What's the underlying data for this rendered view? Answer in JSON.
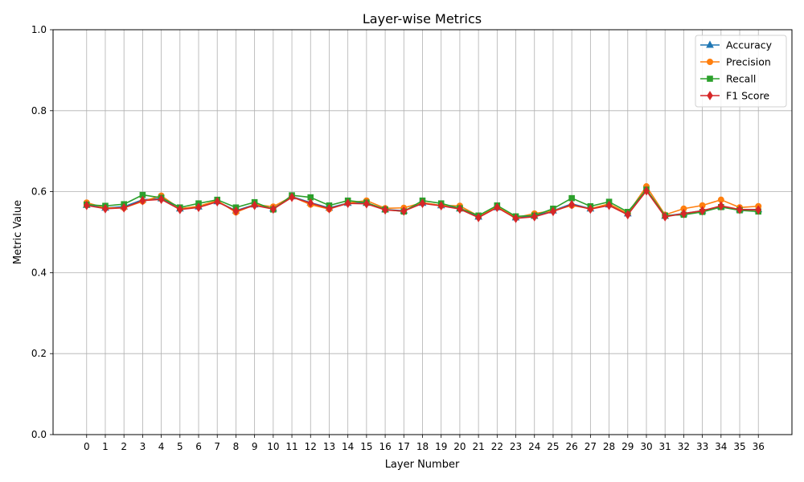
{
  "chart_data": {
    "type": "line",
    "title": "Layer-wise Metrics",
    "xlabel": "Layer Number",
    "ylabel": "Metric Value",
    "x": [
      0,
      1,
      2,
      3,
      4,
      5,
      6,
      7,
      8,
      9,
      10,
      11,
      12,
      13,
      14,
      15,
      16,
      17,
      18,
      19,
      20,
      21,
      22,
      23,
      24,
      25,
      26,
      27,
      28,
      29,
      30,
      31,
      32,
      33,
      34,
      35,
      36
    ],
    "xlim": [
      -1.8,
      37.8
    ],
    "ylim": [
      0.0,
      1.0
    ],
    "yticks": [
      0.0,
      0.2,
      0.4,
      0.6,
      0.8,
      1.0
    ],
    "ytick_labels": [
      "0.0",
      "0.2",
      "0.4",
      "0.6",
      "0.8",
      "1.0"
    ],
    "grid": "on",
    "legend": "top-right",
    "series": [
      {
        "name": "Accuracy",
        "color": "#1f77b4",
        "marker": "triangle",
        "values": [
          0.567,
          0.56,
          0.563,
          0.58,
          0.583,
          0.558,
          0.563,
          0.576,
          0.553,
          0.568,
          0.558,
          0.588,
          0.573,
          0.56,
          0.572,
          0.572,
          0.556,
          0.553,
          0.572,
          0.566,
          0.558,
          0.538,
          0.561,
          0.536,
          0.54,
          0.553,
          0.57,
          0.558,
          0.568,
          0.546,
          0.604,
          0.54,
          0.546,
          0.553,
          0.563,
          0.556,
          0.556
        ]
      },
      {
        "name": "Precision",
        "color": "#ff7f0e",
        "marker": "circle",
        "values": [
          0.573,
          0.56,
          0.56,
          0.576,
          0.59,
          0.558,
          0.564,
          0.578,
          0.549,
          0.568,
          0.563,
          0.588,
          0.568,
          0.557,
          0.572,
          0.578,
          0.559,
          0.56,
          0.573,
          0.566,
          0.565,
          0.54,
          0.563,
          0.536,
          0.546,
          0.553,
          0.566,
          0.558,
          0.57,
          0.546,
          0.613,
          0.543,
          0.558,
          0.566,
          0.58,
          0.561,
          0.564
        ]
      },
      {
        "name": "Recall",
        "color": "#2ca02c",
        "marker": "square",
        "values": [
          0.568,
          0.565,
          0.569,
          0.592,
          0.585,
          0.561,
          0.571,
          0.58,
          0.561,
          0.574,
          0.556,
          0.591,
          0.586,
          0.566,
          0.578,
          0.573,
          0.556,
          0.551,
          0.578,
          0.571,
          0.559,
          0.541,
          0.566,
          0.539,
          0.541,
          0.558,
          0.584,
          0.564,
          0.575,
          0.55,
          0.605,
          0.541,
          0.543,
          0.55,
          0.562,
          0.554,
          0.551
        ]
      },
      {
        "name": "F1 Score",
        "color": "#d62728",
        "marker": "diamond",
        "values": [
          0.566,
          0.558,
          0.56,
          0.578,
          0.581,
          0.556,
          0.561,
          0.575,
          0.552,
          0.566,
          0.557,
          0.586,
          0.572,
          0.558,
          0.571,
          0.57,
          0.555,
          0.552,
          0.571,
          0.565,
          0.557,
          0.536,
          0.561,
          0.534,
          0.538,
          0.551,
          0.568,
          0.557,
          0.566,
          0.543,
          0.602,
          0.538,
          0.546,
          0.553,
          0.565,
          0.556,
          0.555
        ]
      }
    ]
  }
}
